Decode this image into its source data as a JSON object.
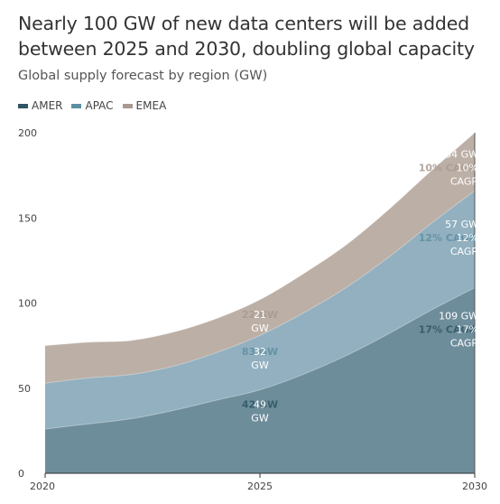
{
  "header": {
    "title_line1": "Nearly 100 GW of new data centers will be added",
    "title_line2": "between 2025 and 2030, doubling global capacity",
    "subtitle": "Global supply forecast by region (GW)"
  },
  "chart_data": {
    "type": "area",
    "stacked": true,
    "x": [
      2020,
      2021,
      2022,
      2023,
      2024,
      2025,
      2026,
      2027,
      2028,
      2029,
      2030
    ],
    "x_ticks": [
      "2020",
      "2025",
      "2030"
    ],
    "y_ticks": [
      "0",
      "50",
      "100",
      "150",
      "200"
    ],
    "ylim": [
      0,
      200
    ],
    "legend_position": "top-left",
    "series": [
      {
        "name": "AMER",
        "color": "#6e8d9b",
        "legend_color": "#2f5565",
        "values": [
          26,
          29,
          32,
          37,
          43,
          49,
          58,
          69,
          82,
          96,
          109
        ]
      },
      {
        "name": "APAC",
        "color": "#92b0bf",
        "legend_color": "#5d8fa2",
        "values": [
          27,
          27,
          26,
          26,
          28,
          32,
          36,
          40,
          45,
          51,
          57
        ]
      },
      {
        "name": "EMEA",
        "color": "#bcafa6",
        "legend_color": "#a89a90",
        "values": [
          22,
          21,
          20,
          20,
          20,
          21,
          23,
          25,
          28,
          31,
          34
        ]
      }
    ],
    "annotations_2025": [
      {
        "series": "AMER",
        "value": "49",
        "unit": "GW",
        "y": 40.5,
        "under": "42 GW",
        "under_color": "#2f5565"
      },
      {
        "series": "APAC",
        "value": "32",
        "unit": "GW",
        "y": 71.5,
        "under": "83 GW",
        "under_color": "#5d8fa2"
      },
      {
        "series": "EMEA",
        "value": "21",
        "unit": "GW",
        "y": 93.5,
        "under": "22 GW",
        "under_color": "#a89a90"
      }
    ],
    "annotations_2030": [
      {
        "series": "AMER",
        "value_text": "109 GW",
        "cagr_under": "17% CAGR",
        "cagr_pct": "17%",
        "cagr_word": "CAGR",
        "y": 83.5,
        "under_color": "#2f5565"
      },
      {
        "series": "APAC",
        "value_text": "57 GW",
        "cagr_under": "12% CAGR",
        "cagr_pct": "12%",
        "cagr_word": "CAGR",
        "y": 137.5,
        "under_color": "#5d8fa2"
      },
      {
        "series": "EMEA",
        "value_text": "34 GW",
        "cagr_under": "10% CAGR",
        "cagr_pct": "10%",
        "cagr_word": "CAGR",
        "y": 178.5,
        "under_color": "#a89a90"
      }
    ]
  }
}
